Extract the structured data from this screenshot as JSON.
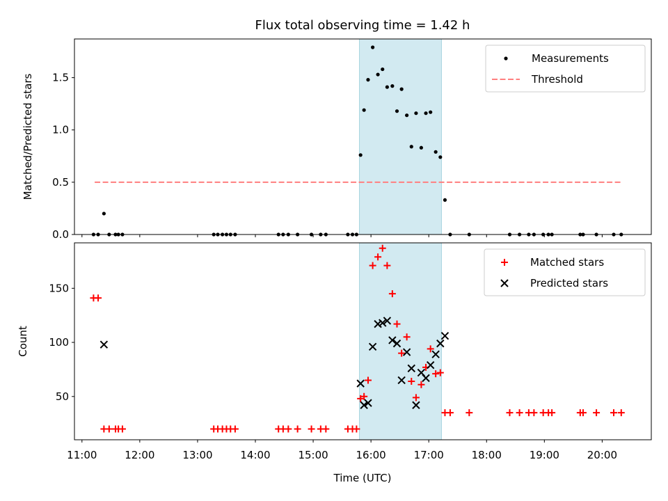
{
  "chart_data": {
    "title": "Flux total observing time = 1.42 h",
    "shaded_span": {
      "start_h": 15.8,
      "end_h": 17.22,
      "color": "#add8e6"
    },
    "x": {
      "label": "Time (UTC)",
      "range_h": [
        10.87,
        20.85
      ],
      "ticks": [
        {
          "value": 11,
          "label": "11:00"
        },
        {
          "value": 12,
          "label": "12:00"
        },
        {
          "value": 13,
          "label": "13:00"
        },
        {
          "value": 14,
          "label": "14:00"
        },
        {
          "value": 15,
          "label": "15:00"
        },
        {
          "value": 16,
          "label": "16:00"
        },
        {
          "value": 17,
          "label": "17:00"
        },
        {
          "value": 18,
          "label": "18:00"
        },
        {
          "value": 19,
          "label": "19:00"
        },
        {
          "value": 20,
          "label": "20:00"
        }
      ]
    },
    "charts": [
      {
        "type": "scatter",
        "ylabel": "Matched/Predicted stars",
        "ylim": [
          0,
          1.87
        ],
        "yticks": [
          {
            "value": 0,
            "label": "0.0"
          },
          {
            "value": 0.5,
            "label": "0.5"
          },
          {
            "value": 1.0,
            "label": "1.0"
          },
          {
            "value": 1.5,
            "label": "1.5"
          }
        ],
        "legend": {
          "position": "top-right",
          "entries": [
            "Measurements",
            "Threshold"
          ]
        },
        "threshold": {
          "name": "Threshold",
          "value": 0.5,
          "x_range_h": [
            11.22,
            20.33
          ],
          "color": "#ff7f7f"
        },
        "series": [
          {
            "name": "Measurements",
            "marker": "dot",
            "color": "#000000",
            "points": [
              [
                11.2,
                0
              ],
              [
                11.28,
                0
              ],
              [
                11.38,
                0.2
              ],
              [
                11.47,
                0
              ],
              [
                11.58,
                0
              ],
              [
                11.63,
                0
              ],
              [
                11.7,
                0
              ],
              [
                13.28,
                0
              ],
              [
                13.35,
                0
              ],
              [
                13.43,
                0
              ],
              [
                13.5,
                0
              ],
              [
                13.57,
                0
              ],
              [
                13.65,
                0
              ],
              [
                14.4,
                0
              ],
              [
                14.48,
                0
              ],
              [
                14.57,
                0
              ],
              [
                14.73,
                0
              ],
              [
                14.97,
                0
              ],
              [
                15.13,
                0
              ],
              [
                15.22,
                0
              ],
              [
                15.6,
                0
              ],
              [
                15.68,
                0
              ],
              [
                15.75,
                0
              ],
              [
                15.82,
                0.76
              ],
              [
                15.88,
                1.19
              ],
              [
                15.95,
                1.48
              ],
              [
                16.03,
                1.79
              ],
              [
                16.12,
                1.53
              ],
              [
                16.2,
                1.58
              ],
              [
                16.28,
                1.41
              ],
              [
                16.37,
                1.42
              ],
              [
                16.45,
                1.18
              ],
              [
                16.53,
                1.39
              ],
              [
                16.62,
                1.14
              ],
              [
                16.7,
                0.84
              ],
              [
                16.78,
                1.16
              ],
              [
                16.87,
                0.83
              ],
              [
                16.95,
                1.16
              ],
              [
                17.03,
                1.17
              ],
              [
                17.12,
                0.79
              ],
              [
                17.2,
                0.74
              ],
              [
                17.28,
                0.33
              ],
              [
                17.37,
                0
              ],
              [
                17.7,
                0
              ],
              [
                18.4,
                0
              ],
              [
                18.57,
                0
              ],
              [
                18.73,
                0
              ],
              [
                18.82,
                0
              ],
              [
                18.98,
                0
              ],
              [
                19.07,
                0
              ],
              [
                19.13,
                0
              ],
              [
                19.62,
                0
              ],
              [
                19.67,
                0
              ],
              [
                19.9,
                0
              ],
              [
                20.2,
                0
              ],
              [
                20.33,
                0
              ]
            ]
          }
        ]
      },
      {
        "type": "scatter",
        "ylabel": "Count",
        "ylim": [
          10,
          192
        ],
        "yticks": [
          {
            "value": 50,
            "label": "50"
          },
          {
            "value": 100,
            "label": "100"
          },
          {
            "value": 150,
            "label": "150"
          }
        ],
        "legend": {
          "position": "top-right",
          "entries": [
            "Matched stars",
            "Predicted stars"
          ]
        },
        "series": [
          {
            "name": "Matched stars",
            "marker": "plus",
            "color": "#ff0000",
            "points": [
              [
                11.2,
                141
              ],
              [
                11.28,
                141
              ],
              [
                11.38,
                20
              ],
              [
                11.47,
                20
              ],
              [
                11.58,
                20
              ],
              [
                11.63,
                20
              ],
              [
                11.7,
                20
              ],
              [
                13.28,
                20
              ],
              [
                13.35,
                20
              ],
              [
                13.43,
                20
              ],
              [
                13.5,
                20
              ],
              [
                13.57,
                20
              ],
              [
                13.65,
                20
              ],
              [
                14.4,
                20
              ],
              [
                14.48,
                20
              ],
              [
                14.57,
                20
              ],
              [
                14.73,
                20
              ],
              [
                14.97,
                20
              ],
              [
                15.13,
                20
              ],
              [
                15.22,
                20
              ],
              [
                15.6,
                20
              ],
              [
                15.68,
                20
              ],
              [
                15.75,
                20
              ],
              [
                15.82,
                48
              ],
              [
                15.88,
                50
              ],
              [
                15.95,
                65
              ],
              [
                16.03,
                171
              ],
              [
                16.12,
                179
              ],
              [
                16.2,
                187
              ],
              [
                16.28,
                171
              ],
              [
                16.37,
                145
              ],
              [
                16.45,
                117
              ],
              [
                16.53,
                90
              ],
              [
                16.62,
                105
              ],
              [
                16.7,
                64
              ],
              [
                16.78,
                49
              ],
              [
                16.87,
                61
              ],
              [
                16.95,
                77
              ],
              [
                17.03,
                94
              ],
              [
                17.12,
                71
              ],
              [
                17.2,
                72
              ],
              [
                17.28,
                35
              ],
              [
                17.37,
                35
              ],
              [
                17.7,
                35
              ],
              [
                18.4,
                35
              ],
              [
                18.57,
                35
              ],
              [
                18.73,
                35
              ],
              [
                18.82,
                35
              ],
              [
                18.98,
                35
              ],
              [
                19.07,
                35
              ],
              [
                19.13,
                35
              ],
              [
                19.62,
                35
              ],
              [
                19.67,
                35
              ],
              [
                19.9,
                35
              ],
              [
                20.2,
                35
              ],
              [
                20.33,
                35
              ]
            ]
          },
          {
            "name": "Predicted stars",
            "marker": "x",
            "color": "#000000",
            "points": [
              [
                11.38,
                98
              ],
              [
                15.82,
                62
              ],
              [
                15.88,
                42
              ],
              [
                15.95,
                44
              ],
              [
                16.03,
                96
              ],
              [
                16.12,
                117
              ],
              [
                16.2,
                118
              ],
              [
                16.28,
                120
              ],
              [
                16.37,
                102
              ],
              [
                16.45,
                99
              ],
              [
                16.53,
                65
              ],
              [
                16.62,
                91
              ],
              [
                16.7,
                76
              ],
              [
                16.78,
                42
              ],
              [
                16.87,
                72
              ],
              [
                16.95,
                67
              ],
              [
                17.03,
                79
              ],
              [
                17.12,
                89
              ],
              [
                17.2,
                99
              ],
              [
                17.28,
                106
              ]
            ]
          }
        ]
      }
    ]
  }
}
